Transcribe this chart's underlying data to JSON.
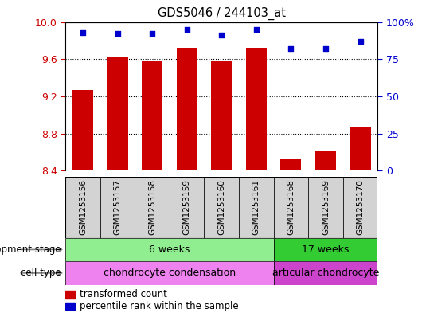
{
  "title": "GDS5046 / 244103_at",
  "samples": [
    "GSM1253156",
    "GSM1253157",
    "GSM1253158",
    "GSM1253159",
    "GSM1253160",
    "GSM1253161",
    "GSM1253168",
    "GSM1253169",
    "GSM1253170"
  ],
  "bar_values": [
    9.27,
    9.62,
    9.58,
    9.72,
    9.58,
    9.72,
    8.52,
    8.62,
    8.87
  ],
  "dot_values": [
    93,
    92,
    92,
    95,
    91,
    95,
    82,
    82,
    87
  ],
  "ylim_left": [
    8.4,
    10.0
  ],
  "ylim_right": [
    0,
    100
  ],
  "yticks_left": [
    8.4,
    8.8,
    9.2,
    9.6,
    10.0
  ],
  "yticks_right": [
    0,
    25,
    50,
    75,
    100
  ],
  "bar_color": "#cc0000",
  "dot_color": "#0000cc",
  "background_plot": "#ffffff",
  "background_sample": "#d3d3d3",
  "dev_stage_label": "development stage",
  "dev_stage_groups": [
    {
      "label": "6 weeks",
      "start": 0,
      "end": 6,
      "color": "#90ee90"
    },
    {
      "label": "17 weeks",
      "start": 6,
      "end": 9,
      "color": "#33cc33"
    }
  ],
  "cell_type_label": "cell type",
  "cell_type_groups": [
    {
      "label": "chondrocyte condensation",
      "start": 0,
      "end": 6,
      "color": "#ee82ee"
    },
    {
      "label": "articular chondrocyte",
      "start": 6,
      "end": 9,
      "color": "#cc44cc"
    }
  ],
  "legend_bar_label": "transformed count",
  "legend_dot_label": "percentile rank within the sample",
  "ylabel_left_color": "#cc0000",
  "ylabel_right_color": "#0000cc"
}
